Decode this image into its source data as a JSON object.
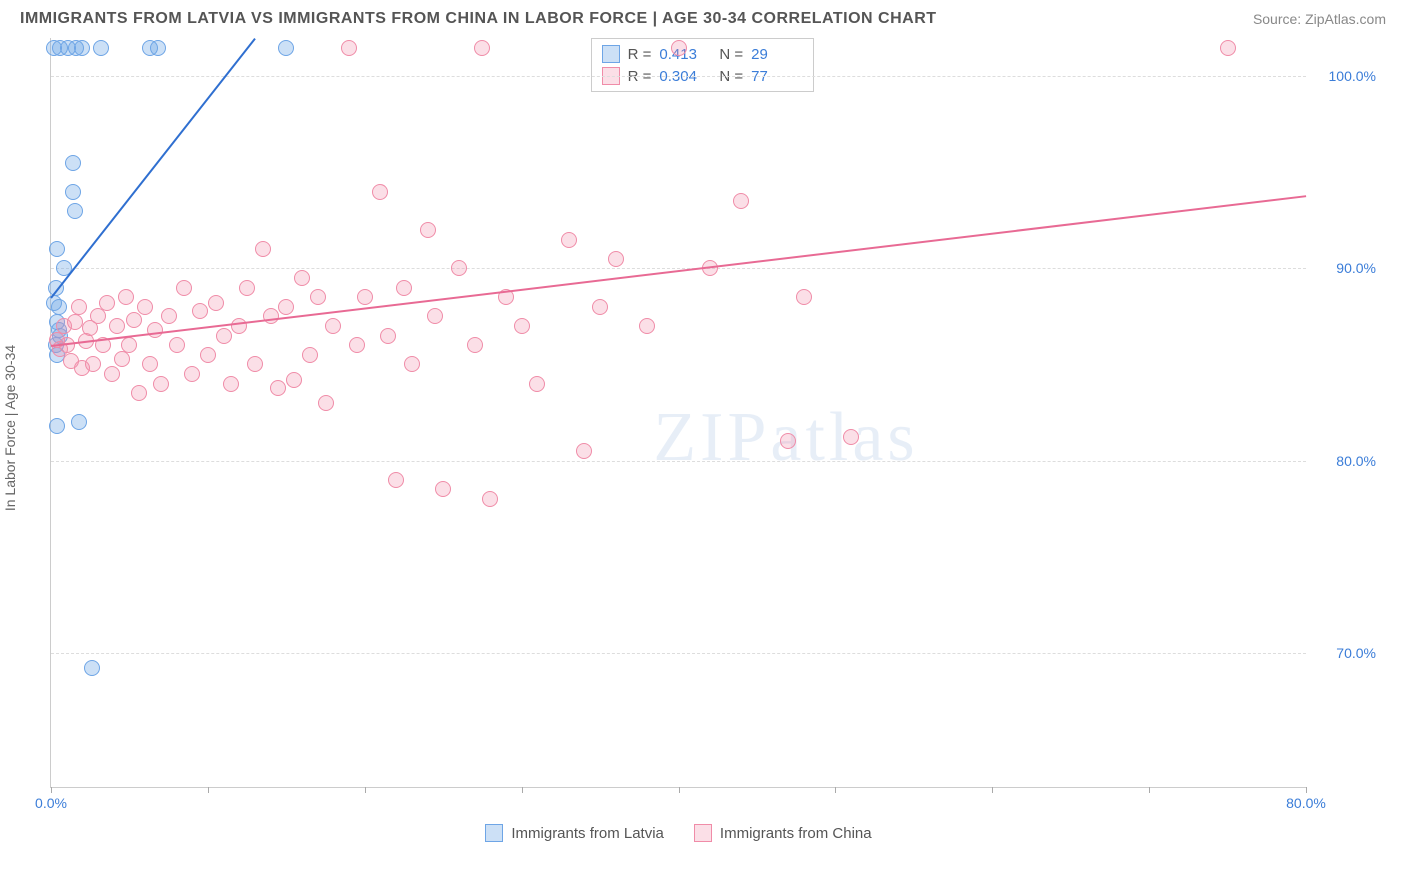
{
  "title": "IMMIGRANTS FROM LATVIA VS IMMIGRANTS FROM CHINA IN LABOR FORCE | AGE 30-34 CORRELATION CHART",
  "source": "Source: ZipAtlas.com",
  "watermark": "ZIPatlas",
  "chart": {
    "type": "scatter",
    "y_axis_label": "In Labor Force | Age 30-34",
    "xlim": [
      0,
      80
    ],
    "ylim": [
      63,
      102
    ],
    "y_ticks": [
      70,
      80,
      90,
      100
    ],
    "y_tick_labels": [
      "70.0%",
      "80.0%",
      "90.0%",
      "100.0%"
    ],
    "x_ticks": [
      0,
      80
    ],
    "x_tick_labels": [
      "0.0%",
      "80.0%"
    ],
    "x_tick_marks": [
      0,
      10,
      20,
      30,
      40,
      50,
      60,
      70,
      80
    ],
    "background_color": "#ffffff",
    "grid_color": "#dddddd",
    "series": [
      {
        "name": "Immigrants from Latvia",
        "fill": "rgba(110,165,230,0.35)",
        "stroke": "#6ea5e6",
        "marker_radius": 8,
        "trend": {
          "x1": 0,
          "y1": 88.5,
          "x2": 13,
          "y2": 102,
          "color": "#2f6fd0",
          "width": 2
        },
        "R": "0.413",
        "N": "29",
        "points": [
          [
            0.2,
            101.5
          ],
          [
            0.6,
            101.5
          ],
          [
            1.1,
            101.5
          ],
          [
            1.6,
            101.5
          ],
          [
            2.0,
            101.5
          ],
          [
            3.2,
            101.5
          ],
          [
            6.3,
            101.5
          ],
          [
            6.8,
            101.5
          ],
          [
            15.0,
            101.5
          ],
          [
            1.4,
            95.5
          ],
          [
            1.4,
            94.0
          ],
          [
            1.5,
            93.0
          ],
          [
            0.4,
            91.0
          ],
          [
            0.8,
            90.0
          ],
          [
            0.3,
            89.0
          ],
          [
            0.2,
            88.2
          ],
          [
            0.5,
            88.0
          ],
          [
            0.4,
            87.2
          ],
          [
            0.6,
            86.5
          ],
          [
            0.3,
            86.0
          ],
          [
            0.5,
            86.8
          ],
          [
            0.4,
            85.5
          ],
          [
            1.8,
            82.0
          ],
          [
            0.4,
            81.8
          ],
          [
            2.6,
            69.2
          ]
        ]
      },
      {
        "name": "Immigrants from China",
        "fill": "rgba(240,140,170,0.28)",
        "stroke": "#f08ca8",
        "marker_radius": 8,
        "trend": {
          "x1": 0,
          "y1": 86.0,
          "x2": 80,
          "y2": 93.8,
          "color": "#e86a94",
          "width": 2
        },
        "R": "0.304",
        "N": "77",
        "points": [
          [
            0.4,
            86.3
          ],
          [
            0.6,
            85.8
          ],
          [
            0.8,
            87.0
          ],
          [
            1.0,
            86.0
          ],
          [
            1.3,
            85.2
          ],
          [
            1.5,
            87.2
          ],
          [
            1.8,
            88.0
          ],
          [
            2.0,
            84.8
          ],
          [
            2.2,
            86.2
          ],
          [
            2.5,
            86.9
          ],
          [
            2.7,
            85.0
          ],
          [
            3.0,
            87.5
          ],
          [
            3.3,
            86.0
          ],
          [
            3.6,
            88.2
          ],
          [
            3.9,
            84.5
          ],
          [
            4.2,
            87.0
          ],
          [
            4.5,
            85.3
          ],
          [
            4.8,
            88.5
          ],
          [
            5.0,
            86.0
          ],
          [
            5.3,
            87.3
          ],
          [
            5.6,
            83.5
          ],
          [
            6.0,
            88.0
          ],
          [
            6.3,
            85.0
          ],
          [
            6.6,
            86.8
          ],
          [
            7.0,
            84.0
          ],
          [
            7.5,
            87.5
          ],
          [
            8.0,
            86.0
          ],
          [
            8.5,
            89.0
          ],
          [
            9.0,
            84.5
          ],
          [
            9.5,
            87.8
          ],
          [
            10.0,
            85.5
          ],
          [
            10.5,
            88.2
          ],
          [
            11.0,
            86.5
          ],
          [
            11.5,
            84.0
          ],
          [
            12.0,
            87.0
          ],
          [
            12.5,
            89.0
          ],
          [
            13.0,
            85.0
          ],
          [
            13.5,
            91.0
          ],
          [
            14.0,
            87.5
          ],
          [
            14.5,
            83.8
          ],
          [
            15.0,
            88.0
          ],
          [
            15.5,
            84.2
          ],
          [
            16.0,
            89.5
          ],
          [
            16.5,
            85.5
          ],
          [
            17.0,
            88.5
          ],
          [
            17.5,
            83.0
          ],
          [
            18.0,
            87.0
          ],
          [
            19.0,
            101.5
          ],
          [
            19.5,
            86.0
          ],
          [
            20.0,
            88.5
          ],
          [
            21.0,
            94.0
          ],
          [
            21.5,
            86.5
          ],
          [
            22.0,
            79.0
          ],
          [
            22.5,
            89.0
          ],
          [
            23.0,
            85.0
          ],
          [
            24.0,
            92.0
          ],
          [
            24.5,
            87.5
          ],
          [
            25.0,
            78.5
          ],
          [
            26.0,
            90.0
          ],
          [
            27.0,
            86.0
          ],
          [
            27.5,
            101.5
          ],
          [
            28.0,
            78.0
          ],
          [
            29.0,
            88.5
          ],
          [
            30.0,
            87.0
          ],
          [
            31.0,
            84.0
          ],
          [
            33.0,
            91.5
          ],
          [
            34.0,
            80.5
          ],
          [
            35.0,
            88.0
          ],
          [
            36.0,
            90.5
          ],
          [
            38.0,
            87.0
          ],
          [
            40.0,
            101.5
          ],
          [
            42.0,
            90.0
          ],
          [
            44.0,
            93.5
          ],
          [
            47.0,
            81.0
          ],
          [
            48.0,
            88.5
          ],
          [
            51.0,
            81.2
          ],
          [
            75.0,
            101.5
          ]
        ]
      }
    ],
    "legend_box": {
      "rows": [
        {
          "swatch_fill": "rgba(110,165,230,0.35)",
          "swatch_stroke": "#6ea5e6",
          "R_label": "R =",
          "R_val": "0.413",
          "N_label": "N =",
          "N_val": "29"
        },
        {
          "swatch_fill": "rgba(240,140,170,0.28)",
          "swatch_stroke": "#f08ca8",
          "R_label": "R =",
          "R_val": "0.304",
          "N_label": "N =",
          "N_val": "77"
        }
      ]
    },
    "bottom_legend": [
      {
        "swatch_fill": "rgba(110,165,230,0.35)",
        "swatch_stroke": "#6ea5e6",
        "label": "Immigrants from Latvia"
      },
      {
        "swatch_fill": "rgba(240,140,170,0.28)",
        "swatch_stroke": "#f08ca8",
        "label": "Immigrants from China"
      }
    ]
  }
}
